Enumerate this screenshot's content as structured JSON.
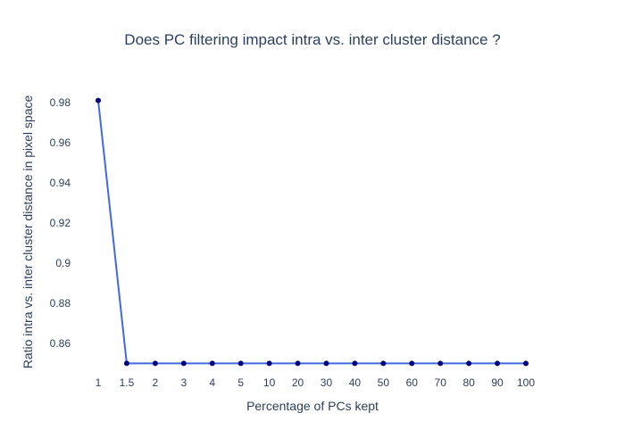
{
  "chart_data": {
    "type": "line",
    "title": "Does PC filtering impact intra vs. inter cluster distance ?",
    "xlabel": "Percentage of PCs kept",
    "ylabel": "Ratio intra vs. inter cluster distance in pixel space",
    "categories": [
      "1",
      "1.5",
      "2",
      "3",
      "4",
      "5",
      "10",
      "20",
      "30",
      "40",
      "50",
      "60",
      "70",
      "80",
      "90",
      "100"
    ],
    "values": [
      0.981,
      0.85,
      0.85,
      0.85,
      0.85,
      0.85,
      0.85,
      0.85,
      0.85,
      0.85,
      0.85,
      0.85,
      0.85,
      0.85,
      0.85,
      0.85
    ],
    "y_ticks": [
      0.86,
      0.88,
      0.9,
      0.92,
      0.94,
      0.96,
      0.98
    ],
    "y_tick_labels": [
      "0.86",
      "0.88",
      "0.9",
      "0.92",
      "0.94",
      "0.96",
      "0.98"
    ],
    "ylim": [
      0.8444,
      0.9866
    ],
    "grid": false,
    "legend": "none",
    "line_color": "#4169e1",
    "marker_color": "#000080"
  }
}
